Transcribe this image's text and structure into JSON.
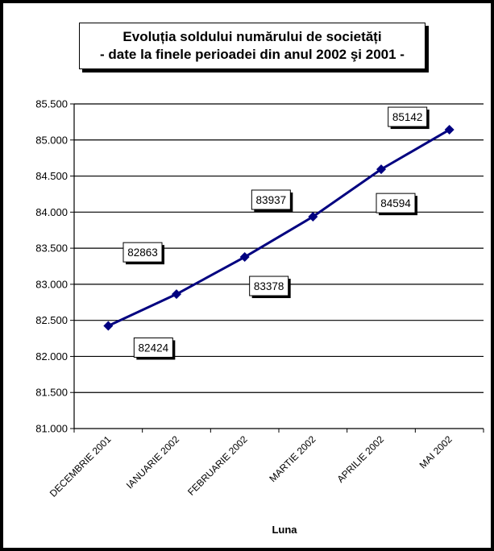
{
  "chart_data": {
    "type": "line",
    "title_lines": [
      "Evoluția soldului numărului de societăți",
      "- date la finele perioadei din anul 2002 şi 2001 -"
    ],
    "xlabel": "Luna",
    "ylabel": "",
    "categories": [
      "DECEMBRIE 2001",
      "IANUARIE 2002",
      "FEBRUARIE 2002",
      "MARTIE 2002",
      "APRILIE 2002",
      "MAI 2002"
    ],
    "values": [
      82424,
      82863,
      83378,
      83937,
      84594,
      85142
    ],
    "data_labels": [
      "82424",
      "82863",
      "83378",
      "83937",
      "84594",
      "85142"
    ],
    "ylim": [
      81000,
      85500
    ],
    "yticks": [
      81000,
      81500,
      82000,
      82500,
      83000,
      83500,
      84000,
      84500,
      85000,
      85500
    ],
    "ytick_labels": [
      "81.000",
      "81.500",
      "82.000",
      "82.500",
      "83.000",
      "83.500",
      "84.000",
      "84.500",
      "85.000",
      "85.500"
    ],
    "grid": true,
    "legend": "none",
    "series_color": "#000080"
  }
}
